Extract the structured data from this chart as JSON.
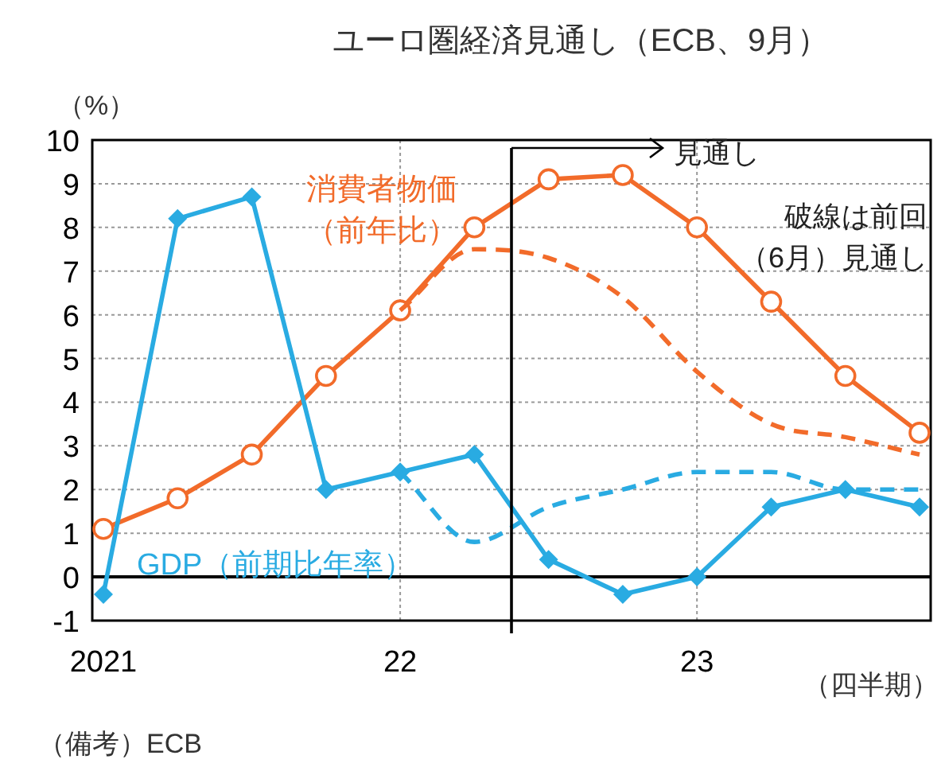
{
  "chart_data": {
    "type": "line",
    "title": "ユーロ圏経済見通し（ECB、9月）",
    "ylabel": "（%）",
    "xlabel": "（四半期）",
    "categories": [
      "2021",
      null,
      null,
      null,
      "22",
      null,
      null,
      null,
      "23",
      null,
      null,
      null
    ],
    "ylim": [
      -1,
      10
    ],
    "yticks": [
      -1,
      0,
      1,
      2,
      3,
      4,
      5,
      6,
      7,
      8,
      9,
      10
    ],
    "grid": true,
    "legend": false,
    "series": [
      {
        "name": "消費者物価（前年比）",
        "color": "#f26b2a",
        "marker": "circle",
        "line_style": "solid",
        "values": [
          1.1,
          1.8,
          2.8,
          4.6,
          6.1,
          8.0,
          9.1,
          9.2,
          8.0,
          6.3,
          4.6,
          3.3
        ]
      },
      {
        "name": "GDP（前期比年率）",
        "color": "#29abe2",
        "marker": "diamond",
        "line_style": "solid",
        "values": [
          -0.4,
          8.2,
          8.7,
          2.0,
          2.4,
          2.8,
          0.4,
          -0.4,
          0.0,
          1.6,
          2.0,
          1.6
        ]
      },
      {
        "color": "#f26b2a",
        "marker": "none",
        "line_style": "dashed",
        "values": [
          null,
          null,
          null,
          null,
          6.1,
          7.5,
          7.3,
          6.4,
          4.7,
          3.5,
          3.2,
          2.8
        ]
      },
      {
        "color": "#29abe2",
        "marker": "none",
        "line_style": "dashed",
        "values": [
          null,
          null,
          null,
          null,
          2.4,
          0.8,
          1.6,
          2.0,
          2.4,
          2.4,
          2.0,
          2.0
        ]
      }
    ],
    "ref_lines": [
      {
        "axis": "y",
        "value": 0,
        "color": "#000000"
      }
    ],
    "annotations": [
      "破線は前回（6月）見通し",
      "（備考）ECB",
      "見通し"
    ]
  }
}
